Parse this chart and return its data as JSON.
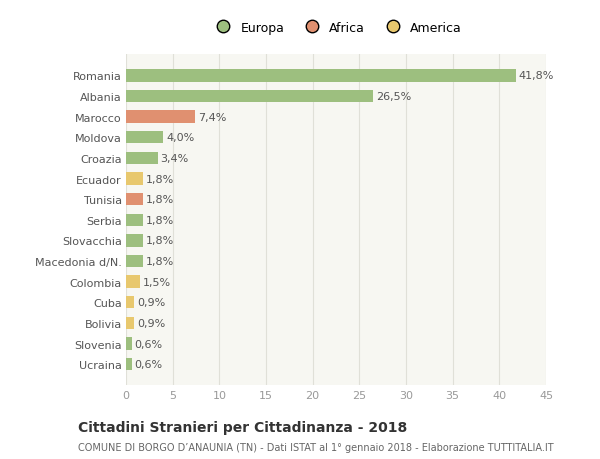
{
  "categories": [
    "Ucraina",
    "Slovenia",
    "Bolivia",
    "Cuba",
    "Colombia",
    "Macedonia d/N.",
    "Slovacchia",
    "Serbia",
    "Tunisia",
    "Ecuador",
    "Croazia",
    "Moldova",
    "Marocco",
    "Albania",
    "Romania"
  ],
  "values": [
    0.6,
    0.6,
    0.9,
    0.9,
    1.5,
    1.8,
    1.8,
    1.8,
    1.8,
    1.8,
    3.4,
    4.0,
    7.4,
    26.5,
    41.8
  ],
  "labels": [
    "0,6%",
    "0,6%",
    "0,9%",
    "0,9%",
    "1,5%",
    "1,8%",
    "1,8%",
    "1,8%",
    "1,8%",
    "1,8%",
    "3,4%",
    "4,0%",
    "7,4%",
    "26,5%",
    "41,8%"
  ],
  "colors": [
    "#9dbf7f",
    "#9dbf7f",
    "#e8c86e",
    "#e8c86e",
    "#e8c86e",
    "#9dbf7f",
    "#9dbf7f",
    "#9dbf7f",
    "#e09070",
    "#e8c86e",
    "#9dbf7f",
    "#9dbf7f",
    "#e09070",
    "#9dbf7f",
    "#9dbf7f"
  ],
  "legend_labels": [
    "Europa",
    "Africa",
    "America"
  ],
  "legend_colors": [
    "#9dbf7f",
    "#e09070",
    "#e8c86e"
  ],
  "xlim": [
    0,
    45
  ],
  "xticks": [
    0,
    5,
    10,
    15,
    20,
    25,
    30,
    35,
    40,
    45
  ],
  "title": "Cittadini Stranieri per Cittadinanza - 2018",
  "subtitle": "COMUNE DI BORGO D’ANAUNIA (TN) - Dati ISTAT al 1° gennaio 2018 - Elaborazione TUTTITALIA.IT",
  "bg_color": "#ffffff",
  "plot_bg_color": "#f7f7f2",
  "grid_color": "#e0e0d8",
  "bar_height": 0.6,
  "label_fontsize": 8,
  "tick_fontsize": 8,
  "ytick_fontsize": 8,
  "title_fontsize": 10,
  "subtitle_fontsize": 7
}
